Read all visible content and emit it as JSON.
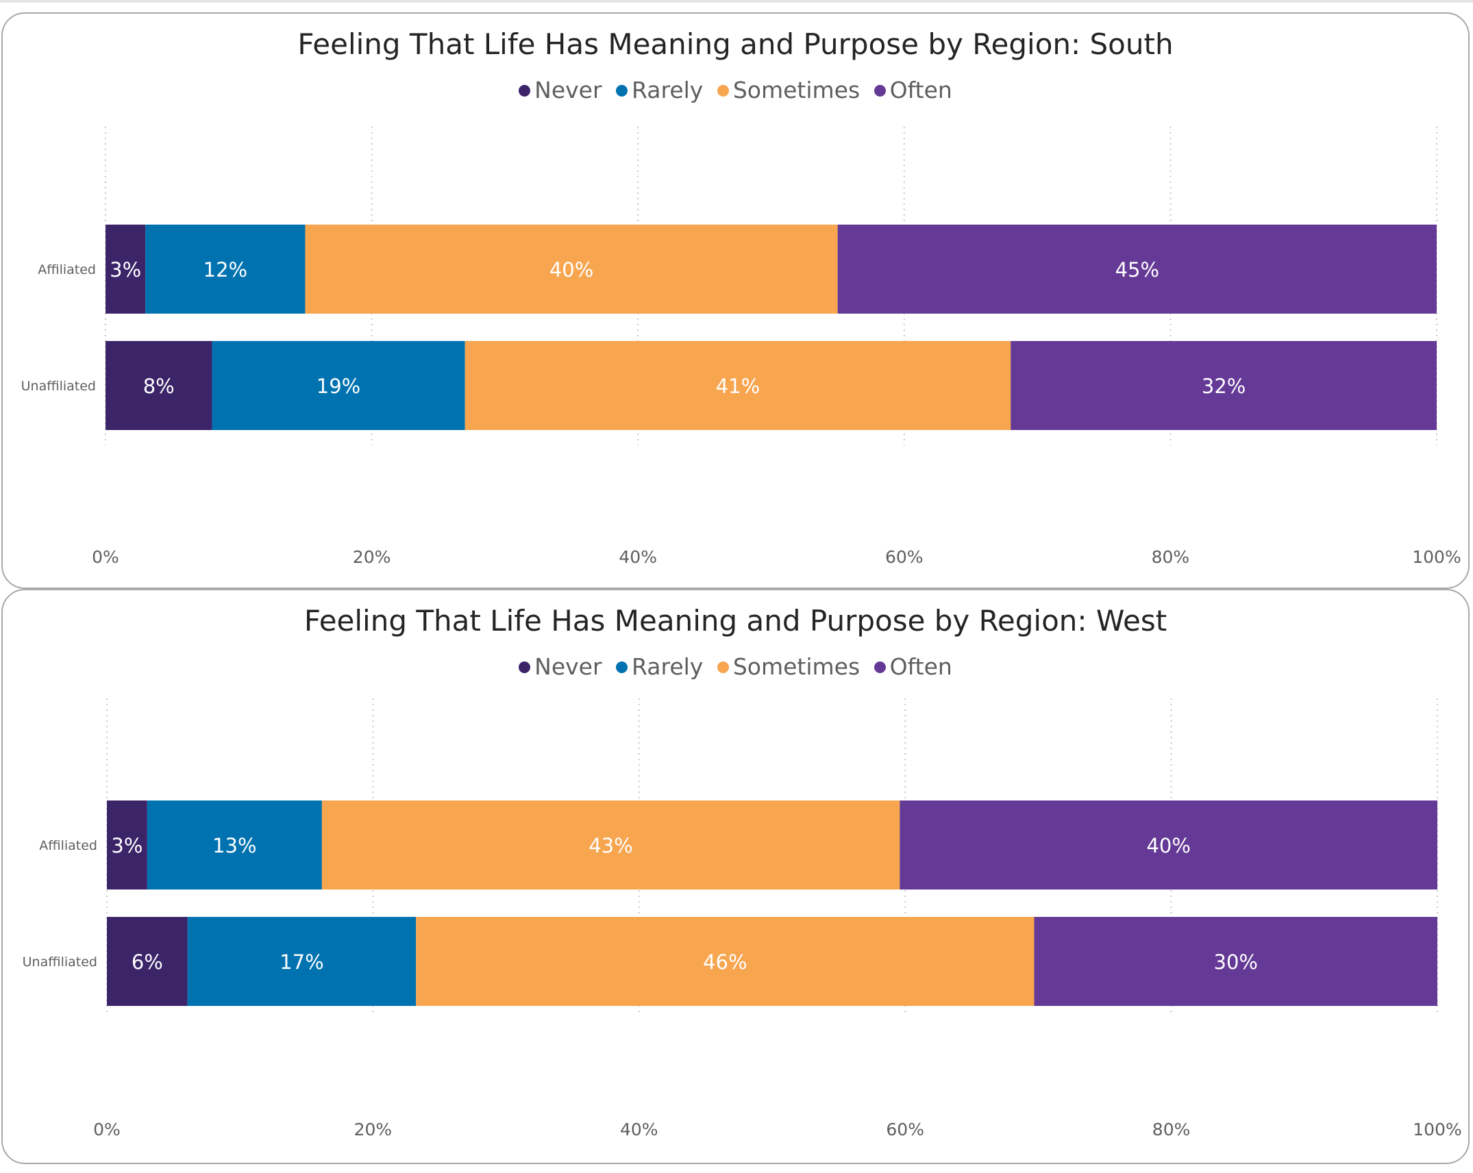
{
  "colors": {
    "Never": "#3b2468",
    "Rarely": "#0072b0",
    "Sometimes": "#f7a54f",
    "Often": "#653996"
  },
  "chart_data": [
    {
      "type": "bar",
      "orientation": "horizontal",
      "stacked": "100%",
      "title": "Feeling That Life Has Meaning and Purpose by Region: South",
      "categories": [
        "Affiliated",
        "Unaffiliated"
      ],
      "series": [
        {
          "name": "Never",
          "values": [
            3,
            8
          ],
          "labels": [
            "3%",
            "8%"
          ]
        },
        {
          "name": "Rarely",
          "values": [
            12,
            19
          ],
          "labels": [
            "12%",
            "19%"
          ]
        },
        {
          "name": "Sometimes",
          "values": [
            40,
            41
          ],
          "labels": [
            "40%",
            "41%"
          ]
        },
        {
          "name": "Often",
          "values": [
            45,
            32
          ],
          "labels": [
            "45%",
            "32%"
          ]
        }
      ],
      "xlim": [
        0,
        100
      ],
      "xticks": [
        "0%",
        "20%",
        "40%",
        "60%",
        "80%",
        "100%"
      ],
      "grid": true,
      "legend": "top-center"
    },
    {
      "type": "bar",
      "orientation": "horizontal",
      "stacked": "100%",
      "title": "Feeling That Life Has Meaning and Purpose by Region: West",
      "categories": [
        "Affiliated",
        "Unaffiliated"
      ],
      "series": [
        {
          "name": "Never",
          "values": [
            3,
            6
          ],
          "labels": [
            "3%",
            "6%"
          ]
        },
        {
          "name": "Rarely",
          "values": [
            13,
            17
          ],
          "labels": [
            "13%",
            "17%"
          ]
        },
        {
          "name": "Sometimes",
          "values": [
            43,
            46
          ],
          "labels": [
            "43%",
            "46%"
          ]
        },
        {
          "name": "Often",
          "values": [
            40,
            30
          ],
          "labels": [
            "40%",
            "30%"
          ]
        }
      ],
      "xlim": [
        0,
        100
      ],
      "xticks": [
        "0%",
        "20%",
        "40%",
        "60%",
        "80%",
        "100%"
      ],
      "grid": true,
      "legend": "top-center"
    }
  ]
}
